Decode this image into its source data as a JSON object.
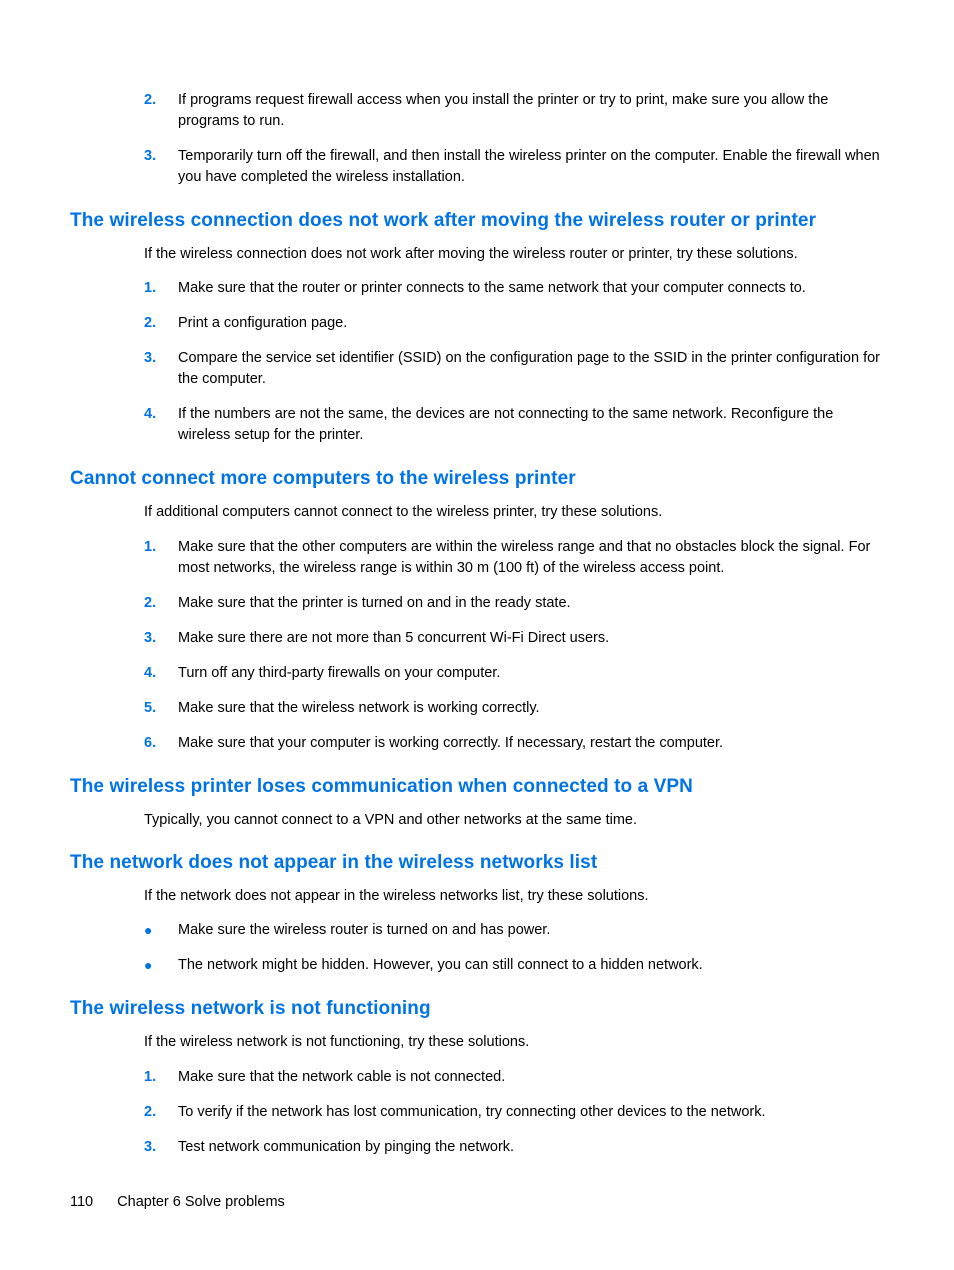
{
  "colors": {
    "heading_blue": "#0073e6",
    "text_black": "#000000",
    "background": "#ffffff"
  },
  "typography": {
    "heading_fontsize": 19,
    "body_fontsize": 14.5,
    "heading_weight": 600
  },
  "intro_list": {
    "items": [
      {
        "num": "2.",
        "text": "If programs request firewall access when you install the printer or try to print, make sure you allow the programs to run."
      },
      {
        "num": "3.",
        "text": "Temporarily turn off the firewall, and then install the wireless printer on the computer. Enable the firewall when you have completed the wireless installation."
      }
    ]
  },
  "sections": [
    {
      "heading": "The wireless connection does not work after moving the wireless router or printer",
      "intro": "If the wireless connection does not work after moving the wireless router or printer, try these solutions.",
      "list_type": "ol",
      "items": [
        {
          "num": "1.",
          "text": "Make sure that the router or printer connects to the same network that your computer connects to."
        },
        {
          "num": "2.",
          "text": "Print a configuration page."
        },
        {
          "num": "3.",
          "text": "Compare the service set identifier (SSID) on the configuration page to the SSID in the printer configuration for the computer."
        },
        {
          "num": "4.",
          "text": "If the numbers are not the same, the devices are not connecting to the same network. Reconfigure the wireless setup for the printer."
        }
      ]
    },
    {
      "heading": "Cannot connect more computers to the wireless printer",
      "intro": "If additional computers cannot connect to the wireless printer, try these solutions.",
      "list_type": "ol",
      "items": [
        {
          "num": "1.",
          "text": "Make sure that the other computers are within the wireless range and that no obstacles block the signal. For most networks, the wireless range is within 30 m (100 ft) of the wireless access point."
        },
        {
          "num": "2.",
          "text": "Make sure that the printer is turned on and in the ready state."
        },
        {
          "num": "3.",
          "text": "Make sure there are not more than 5 concurrent Wi-Fi Direct users."
        },
        {
          "num": "4.",
          "text": "Turn off any third-party firewalls on your computer."
        },
        {
          "num": "5.",
          "text": "Make sure that the wireless network is working correctly."
        },
        {
          "num": "6.",
          "text": "Make sure that your computer is working correctly. If necessary, restart the computer."
        }
      ]
    },
    {
      "heading": "The wireless printer loses communication when connected to a VPN",
      "intro": "Typically, you cannot connect to a VPN and other networks at the same time.",
      "list_type": "none",
      "items": []
    },
    {
      "heading": "The network does not appear in the wireless networks list",
      "intro": "If the network does not appear in the wireless networks list, try these solutions.",
      "list_type": "ul",
      "items": [
        {
          "text": "Make sure the wireless router is turned on and has power."
        },
        {
          "text": "The network might be hidden. However, you can still connect to a hidden network."
        }
      ]
    },
    {
      "heading": "The wireless network is not functioning",
      "intro": "If the wireless network is not functioning, try these solutions.",
      "list_type": "ol",
      "items": [
        {
          "num": "1.",
          "text": "Make sure that the network cable is not connected."
        },
        {
          "num": "2.",
          "text": "To verify if the network has lost communication, try connecting other devices to the network."
        },
        {
          "num": "3.",
          "text": "Test network communication by pinging the network."
        }
      ]
    }
  ],
  "footer": {
    "page_number": "110",
    "chapter_label": "Chapter 6  Solve problems"
  }
}
